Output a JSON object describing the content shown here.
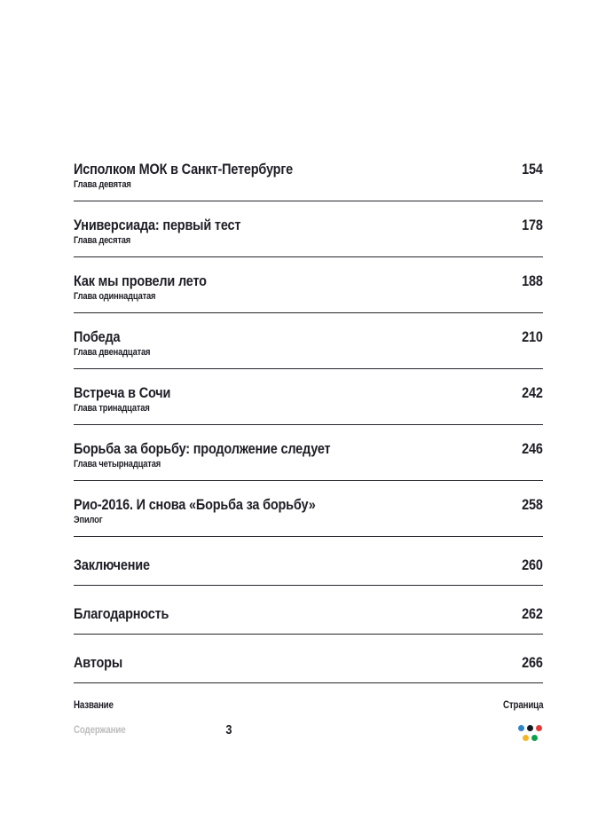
{
  "toc": {
    "entries": [
      {
        "title": "Исполком МОК в Санкт-Петербурге",
        "subtitle": "Глава девятая",
        "page": "154"
      },
      {
        "title": "Универсиада: первый тест",
        "subtitle": "Глава десятая",
        "page": "178"
      },
      {
        "title": "Как мы провели лето",
        "subtitle": "Глава одиннадцатая",
        "page": "188"
      },
      {
        "title": "Победа",
        "subtitle": "Глава двенадцатая",
        "page": "210"
      },
      {
        "title": "Встреча в Сочи",
        "subtitle": "Глава тринадцатая",
        "page": "242"
      },
      {
        "title": "Борьба за борьбу: продолжение следует",
        "subtitle": "Глава четырнадцатая",
        "page": "246"
      },
      {
        "title": "Рио-2016. И снова «Борьба за борьбу»",
        "subtitle": "Эпилог",
        "page": "258"
      },
      {
        "title": "Заключение",
        "subtitle": "",
        "page": "260"
      },
      {
        "title": "Благодарность",
        "subtitle": "",
        "page": "262"
      },
      {
        "title": "Авторы",
        "subtitle": "",
        "page": "266"
      }
    ],
    "legend": {
      "name_label": "Название",
      "page_label": "Страница"
    }
  },
  "footer": {
    "section_label": "Содержание",
    "page_number": "3"
  },
  "logo": {
    "dots": [
      {
        "name": "blue",
        "color": "#2e86c8"
      },
      {
        "name": "black",
        "color": "#17171f"
      },
      {
        "name": "red",
        "color": "#e23b35"
      },
      {
        "name": "yellow",
        "color": "#f3b723"
      },
      {
        "name": "green",
        "color": "#0da04c"
      }
    ]
  },
  "colors": {
    "text": "#1e1e26",
    "muted": "#bdbdbd",
    "rule": "#26262c"
  }
}
